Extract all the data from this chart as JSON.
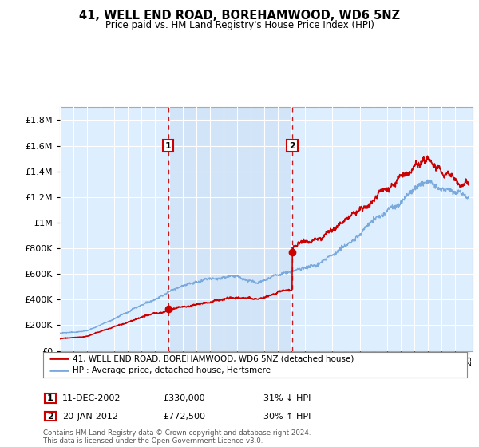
{
  "title": "41, WELL END ROAD, BOREHAMWOOD, WD6 5NZ",
  "subtitle": "Price paid vs. HM Land Registry's House Price Index (HPI)",
  "legend_line1": "41, WELL END ROAD, BOREHAMWOOD, WD6 5NZ (detached house)",
  "legend_line2": "HPI: Average price, detached house, Hertsmere",
  "annotation1_label": "1",
  "annotation1_date": "11-DEC-2002",
  "annotation1_price": "£330,000",
  "annotation1_hpi": "31% ↓ HPI",
  "annotation2_label": "2",
  "annotation2_date": "20-JAN-2012",
  "annotation2_price": "£772,500",
  "annotation2_hpi": "30% ↑ HPI",
  "footnote": "Contains HM Land Registry data © Crown copyright and database right 2024.\nThis data is licensed under the Open Government Licence v3.0.",
  "red_color": "#cc0000",
  "blue_color": "#7aaadd",
  "shade_color": "#ddeeff",
  "background_plot": "#ddeeff",
  "ylim_max": 1900000,
  "purchase1_year": 2002.95,
  "purchase1_price": 330000,
  "purchase2_year": 2012.05,
  "purchase2_price": 772500
}
